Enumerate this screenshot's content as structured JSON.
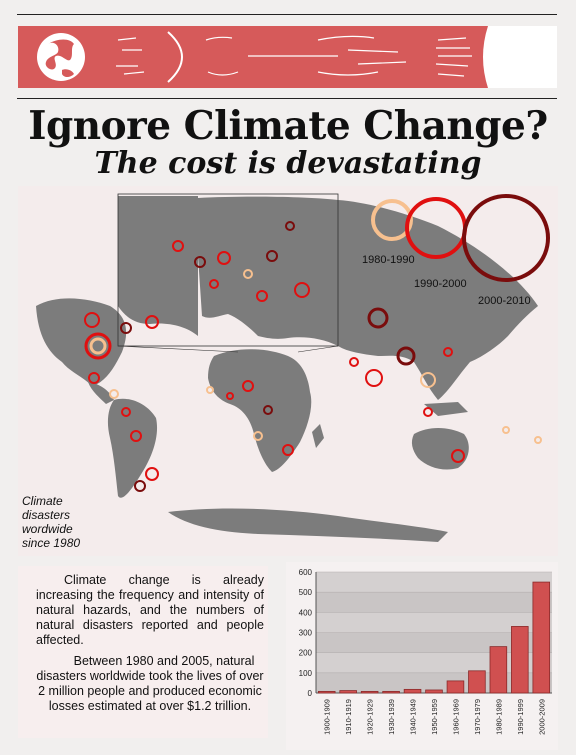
{
  "page": {
    "title": "Ignore Climate Change?",
    "subtitle": "The cost is devastating"
  },
  "banner": {
    "icons": [
      "globe-icon",
      "wind-arrows-icon"
    ],
    "colors": {
      "band": "#d65a5a",
      "globe": "#ffffff"
    }
  },
  "map": {
    "caption_lines": [
      "Climate",
      "disasters",
      "wordwide",
      "since 1980"
    ],
    "legend": [
      {
        "label": "1980-1990",
        "color": "#f7c08f"
      },
      {
        "label": "1990-2000",
        "color": "#e01010"
      },
      {
        "label": "2000-2010",
        "color": "#7a0c0c"
      }
    ],
    "land_color": "#7c7c7c"
  },
  "text": {
    "paragraph1": "Climate change is already increasing the frequency and intensity of natural hazards, and the numbers of natural disasters reported and people affected.",
    "paragraph2": "Between 1980 and 2005, natural disasters worldwide took the lives of over 2 million people and produced economic losses estimated at over $1.2 trillion."
  },
  "chart_data": {
    "type": "bar",
    "categories": [
      "1900-1909",
      "1910-1919",
      "1920-1929",
      "1930-1939",
      "1940-1949",
      "1950-1959",
      "1960-1969",
      "1970-1979",
      "1980-1989",
      "1990-1999",
      "2000-2009"
    ],
    "values": [
      8,
      12,
      8,
      8,
      18,
      15,
      60,
      110,
      230,
      330,
      550
    ],
    "ylim": [
      0,
      600
    ],
    "yticks": [
      0,
      100,
      200,
      300,
      400,
      500,
      600
    ],
    "grid": true,
    "bar_color": "#d05050"
  }
}
